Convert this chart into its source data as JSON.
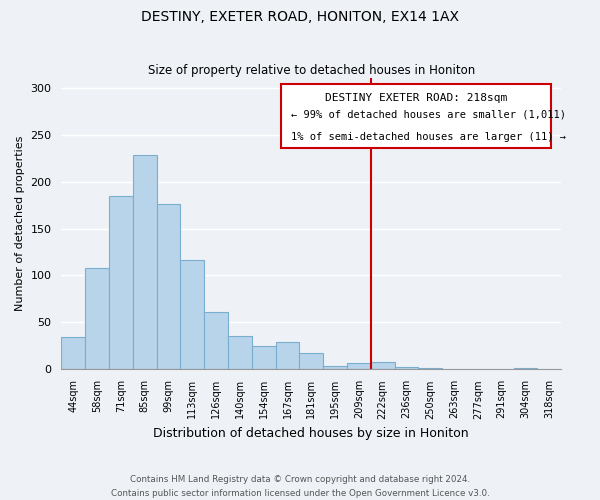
{
  "title": "DESTINY, EXETER ROAD, HONITON, EX14 1AX",
  "subtitle": "Size of property relative to detached houses in Honiton",
  "xlabel": "Distribution of detached houses by size in Honiton",
  "ylabel": "Number of detached properties",
  "bin_labels": [
    "44sqm",
    "58sqm",
    "71sqm",
    "85sqm",
    "99sqm",
    "113sqm",
    "126sqm",
    "140sqm",
    "154sqm",
    "167sqm",
    "181sqm",
    "195sqm",
    "209sqm",
    "222sqm",
    "236sqm",
    "250sqm",
    "263sqm",
    "277sqm",
    "291sqm",
    "304sqm",
    "318sqm"
  ],
  "bar_heights": [
    35,
    108,
    185,
    228,
    176,
    117,
    61,
    36,
    25,
    29,
    18,
    4,
    7,
    8,
    3,
    2,
    1,
    0,
    0,
    2,
    0
  ],
  "bar_color": "#b8d4ea",
  "bar_edge_color": "#7aaed0",
  "vline_x": 13,
  "vline_color": "#cc0000",
  "annotation_title": "DESTINY EXETER ROAD: 218sqm",
  "annotation_line1": "← 99% of detached houses are smaller (1,011)",
  "annotation_line2": "1% of semi-detached houses are larger (11) →",
  "annotation_box_color": "#ffffff",
  "annotation_box_edge": "#cc0000",
  "footer_line1": "Contains HM Land Registry data © Crown copyright and database right 2024.",
  "footer_line2": "Contains public sector information licensed under the Open Government Licence v3.0.",
  "ylim": [
    0,
    310
  ],
  "background_color": "#eef2f7",
  "grid_color": "#ffffff"
}
